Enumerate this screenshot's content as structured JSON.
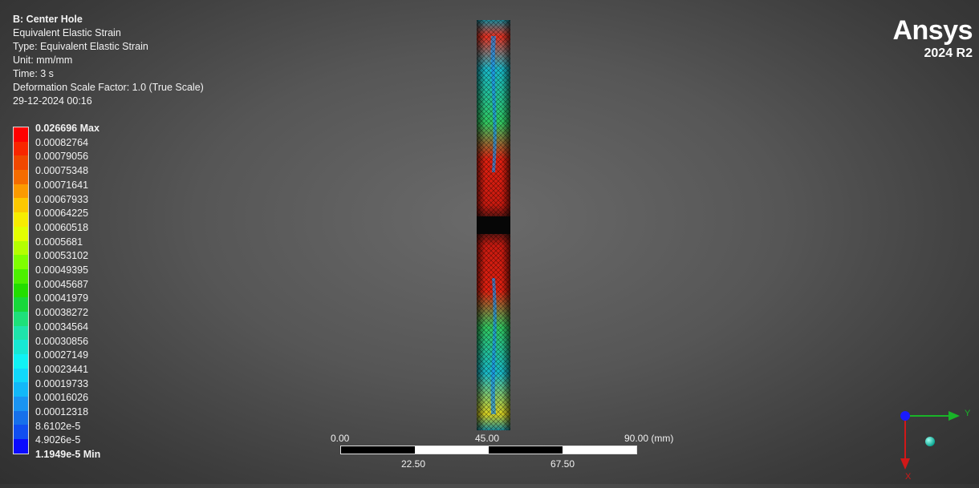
{
  "info": {
    "title": "B: Center Hole",
    "result_name": "Equivalent Elastic Strain",
    "type": "Type: Equivalent Elastic Strain",
    "unit": "Unit: mm/mm",
    "time": "Time: 3 s",
    "deformation": "Deformation Scale Factor: 1.0 (True Scale)",
    "timestamp": "29-12-2024 00:16"
  },
  "legend": {
    "max_label": "0.026696 Max",
    "min_label": "1.1949e-5 Min",
    "values": [
      "0.00082764",
      "0.00079056",
      "0.00075348",
      "0.00071641",
      "0.00067933",
      "0.00064225",
      "0.00060518",
      "0.0005681",
      "0.00053102",
      "0.00049395",
      "0.00045687",
      "0.00041979",
      "0.00038272",
      "0.00034564",
      "0.00030856",
      "0.00027149",
      "0.00023441",
      "0.00019733",
      "0.00016026",
      "0.00012318",
      "8.6102e-5",
      "4.9026e-5"
    ],
    "colors": [
      "#ff0000",
      "#f82600",
      "#f04800",
      "#f46c00",
      "#fb9a00",
      "#fcc800",
      "#f7ec00",
      "#e3ff00",
      "#b4ff00",
      "#7fff00",
      "#4cf000",
      "#22de00",
      "#17d83a",
      "#1ee07a",
      "#1fe3ab",
      "#17e8d4",
      "#10f2f4",
      "#10d8fb",
      "#12b8f8",
      "#1a94f2",
      "#1670ea",
      "#104ef0",
      "#0a0aff"
    ]
  },
  "logo": {
    "brand": "Ansys",
    "version": "2024 R2"
  },
  "scale": {
    "top_labels": [
      "0.00",
      "45.00",
      "90.00 (mm)"
    ],
    "bottom_labels": [
      "22.50",
      "67.50"
    ]
  },
  "triad": {
    "y_label": "Y",
    "x_label": "X"
  }
}
